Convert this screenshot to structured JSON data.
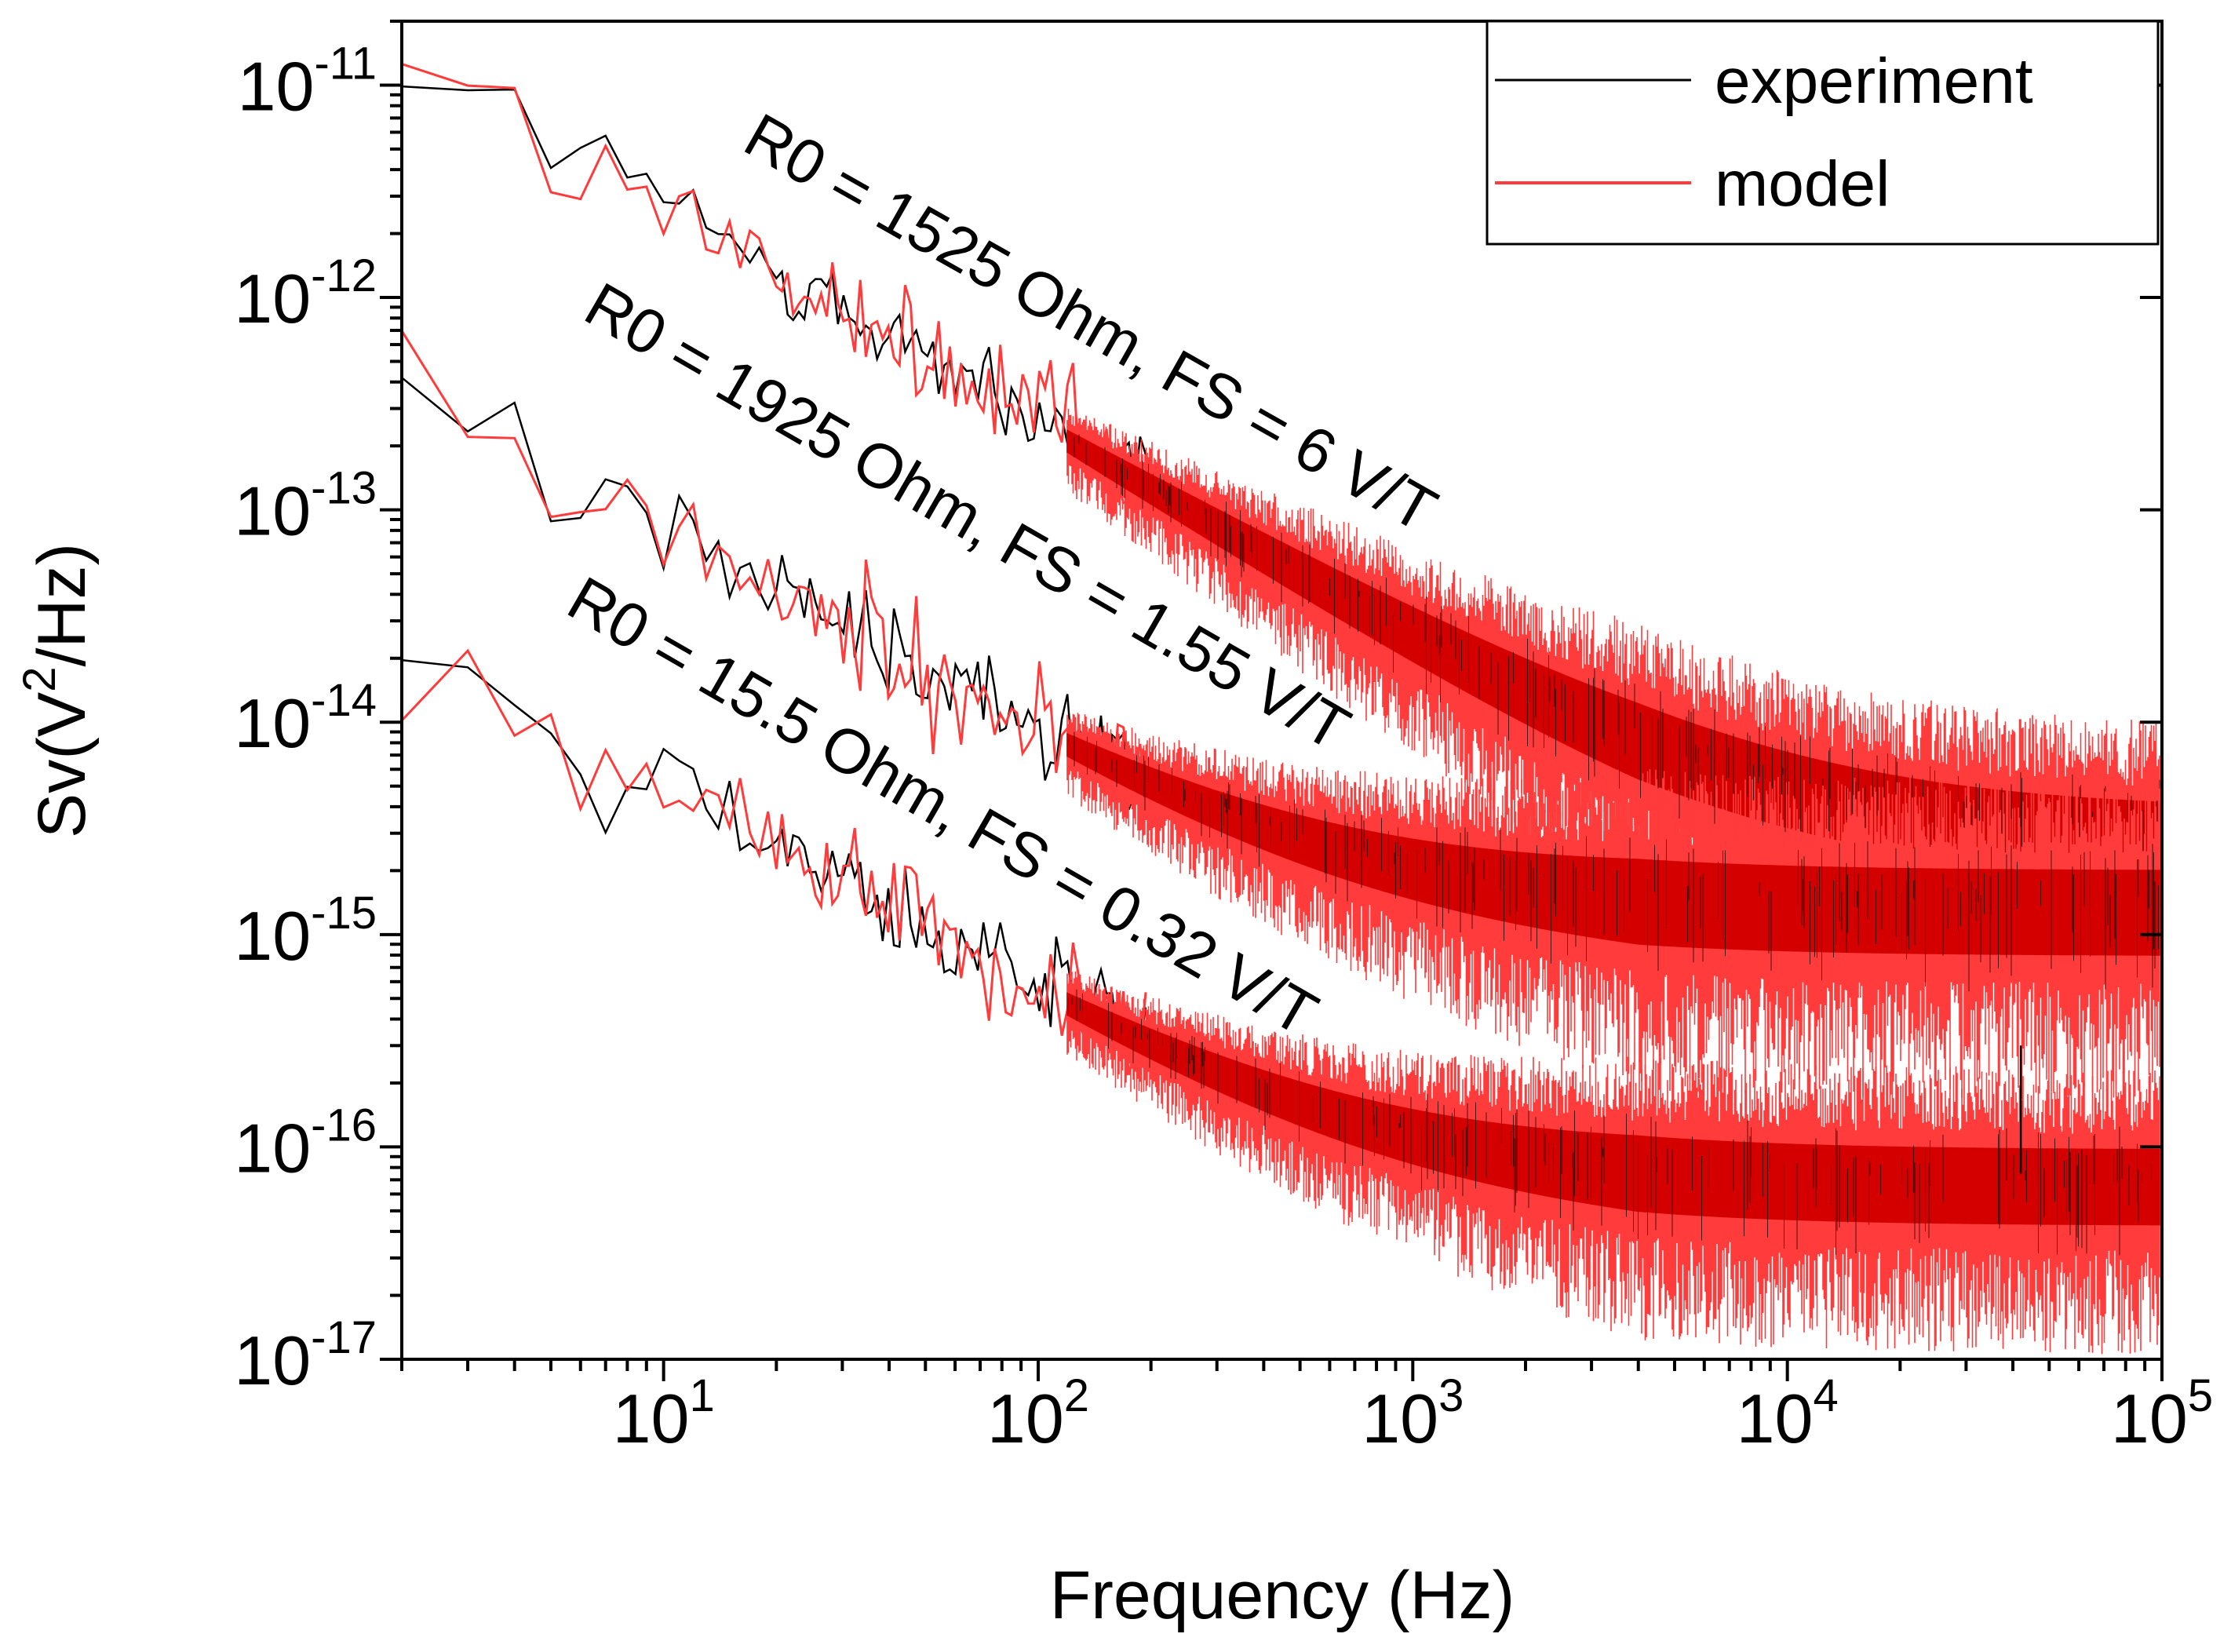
{
  "chart_data": {
    "type": "line",
    "title": "",
    "xlabel": "Frequency (Hz)",
    "ylabel": {
      "prefix": "Sv(V",
      "sup": "2",
      "suffix": "/Hz)"
    },
    "xscale": "log",
    "yscale": "log",
    "xlim": [
      2,
      100000
    ],
    "ylim": [
      1e-17,
      2e-11
    ],
    "x_ticks": [
      {
        "value": 10,
        "base": "10",
        "exp": "1"
      },
      {
        "value": 100,
        "base": "10",
        "exp": "2"
      },
      {
        "value": 1000,
        "base": "10",
        "exp": "3"
      },
      {
        "value": 10000,
        "base": "10",
        "exp": "4"
      },
      {
        "value": 100000,
        "base": "10",
        "exp": "5"
      }
    ],
    "y_ticks": [
      {
        "value": 1e-11,
        "base": "10",
        "exp": "-11"
      },
      {
        "value": 1e-12,
        "base": "10",
        "exp": "-12"
      },
      {
        "value": 1e-13,
        "base": "10",
        "exp": "-13"
      },
      {
        "value": 1e-14,
        "base": "10",
        "exp": "-14"
      },
      {
        "value": 1e-15,
        "base": "10",
        "exp": "-15"
      },
      {
        "value": 1e-16,
        "base": "10",
        "exp": "-16"
      },
      {
        "value": 1e-17,
        "base": "10",
        "exp": "-17"
      }
    ],
    "legend": {
      "position": "top-right",
      "entries": [
        {
          "label": "experiment",
          "color": "#000000"
        },
        {
          "label": "model",
          "color": "#ff3b3b"
        }
      ]
    },
    "curves": [
      {
        "name": "R0 = 1525 Ohm, FS = 6 V/T",
        "model": "A/f + B",
        "A": 2.6e-11,
        "B": 3e-15,
        "exp_start": 1.5e-11,
        "model_start": 1.2e-11,
        "low_spread": 0.3,
        "high_spread_decades": 0.6
      },
      {
        "name": "R0 = 1925 Ohm, FS = 1.55 V/T",
        "model": "A/f + B",
        "A": 8e-13,
        "B": 1.5e-15,
        "exp_start": 3.8e-13,
        "model_start": 4.8e-13,
        "low_spread": 0.3,
        "high_spread_decades": 0.7
      },
      {
        "name": "R0 = 15.5 Ohm, FS = 0.32 V/T",
        "model": "A/f + B",
        "A": 5e-14,
        "B": 7.5e-17,
        "exp_start": 2.2e-14,
        "model_start": 1.2e-14,
        "low_spread": 0.3,
        "high_spread_decades": 0.6
      }
    ],
    "annotations": [
      {
        "text": "R0 = 1525 Ohm, FS = 6 V/T",
        "anchor_freq": 16,
        "anchor_sv": 5e-12,
        "rotation_deg": 29.5
      },
      {
        "text": "R0 = 1925 Ohm, FS = 1.55 V/T",
        "anchor_freq": 6,
        "anchor_sv": 8e-13,
        "rotation_deg": 30
      },
      {
        "text": "R0 = 15.5 Ohm, FS = 0.32 V/T",
        "anchor_freq": 5.4,
        "anchor_sv": 3.3e-14,
        "rotation_deg": 30
      }
    ],
    "notable_spike": {
      "freq": 42000,
      "sv": 3e-16
    }
  },
  "colors": {
    "experiment": "#000000",
    "model": "#ff3b3b",
    "model_dense": "#d40000"
  }
}
